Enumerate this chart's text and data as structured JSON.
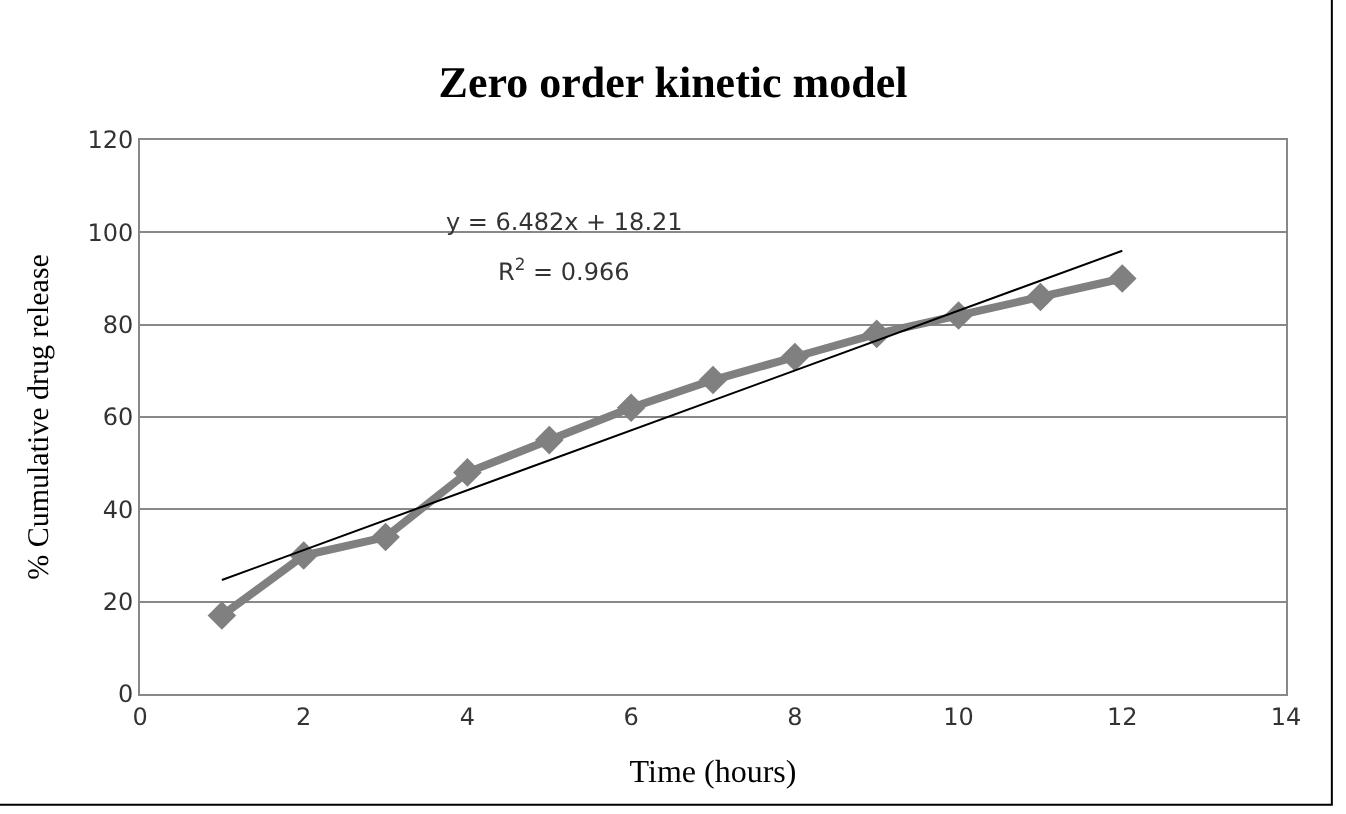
{
  "chart_data": {
    "type": "line",
    "title": "Zero order kinetic model",
    "xlabel": "Time (hours)",
    "ylabel": "% Cumulative drug release",
    "x": [
      1,
      2,
      3,
      4,
      5,
      6,
      7,
      8,
      9,
      10,
      11,
      12
    ],
    "series": [
      {
        "color": "#808080",
        "values": [
          17,
          30,
          34,
          48,
          55,
          62,
          68,
          73,
          78,
          82,
          86,
          90
        ],
        "marker": "diamond"
      },
      {
        "type": "line",
        "color": "#000000",
        "x": [
          1,
          12
        ],
        "values": [
          24.7,
          96.0
        ],
        "marker": "none"
      }
    ],
    "annotations": [
      "y = 6.482x + 18.21",
      "R$^{2}$ = 0.966"
    ],
    "xlim": [
      0,
      14
    ],
    "xticks": [
      0,
      2,
      4,
      6,
      8,
      10,
      12,
      14
    ],
    "ylim": [
      0,
      120
    ],
    "yticks": [
      0,
      20,
      40,
      60,
      80,
      100,
      120
    ],
    "grid": "y"
  }
}
